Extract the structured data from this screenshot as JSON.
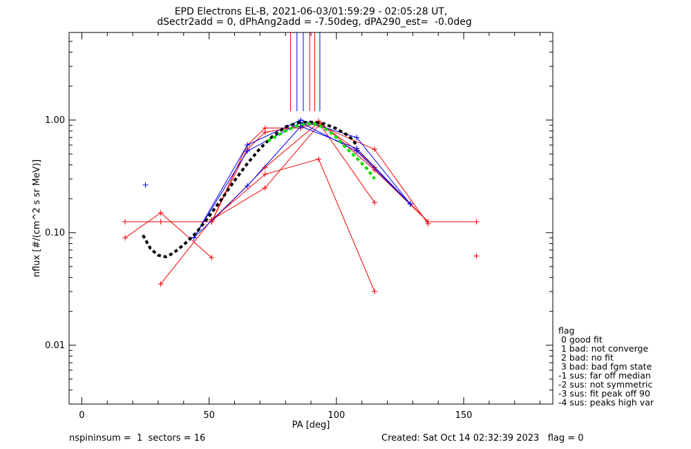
{
  "title": {
    "line1": "EPD Electrons EL-B, 2021-06-03/01:59:29 - 02:05:28 UT,",
    "line2": "dSectr2add = 0, dPhAng2add = -7.50deg, dPA290_est=  -0.0deg"
  },
  "footer": {
    "left": "nspininsum =  1  sectors = 16",
    "right": "Created: Sat Oct 14 02:32:39 2023   flag = 0"
  },
  "legend": {
    "title": "flag",
    "items": [
      " 0 good fit",
      " 1 bad: not converge",
      " 2 bad: no fit",
      " 3 bad: bad fgm state",
      "-1 sus: far off median",
      "-2 sus: not symmetric",
      "-3 sus: fit peak off 90",
      "-4 sus: peaks high var"
    ]
  },
  "colors": {
    "red": "#ee0000",
    "blue": "#0000ee",
    "black": "#000000",
    "green": "#00dd00"
  },
  "chart_data": {
    "type": "scatter",
    "xlabel": "PA [deg]",
    "ylabel": "nflux [#/(cm^2 s sr MeV)]",
    "xlim": [
      -5,
      185
    ],
    "ylim": [
      0.003,
      6.0
    ],
    "yscale": "log",
    "xticks": [
      0,
      50,
      100,
      150
    ],
    "xtick_labels": [
      "0",
      "50",
      "100",
      "150"
    ],
    "yticks": [
      0.01,
      0.1,
      1.0
    ],
    "ytick_labels": [
      "0.01",
      "0.10",
      "1.00"
    ],
    "red_lines": [
      [
        [
          17,
          0.125
        ],
        [
          31,
          0.125
        ],
        [
          51,
          0.125
        ],
        [
          65,
          0.6
        ],
        [
          72,
          0.85
        ],
        [
          86,
          0.85
        ],
        [
          93,
          0.95
        ],
        [
          108,
          0.54
        ],
        [
          115,
          0.38
        ],
        [
          136,
          0.125
        ],
        [
          155,
          0.125
        ]
      ],
      [
        [
          17,
          0.09
        ],
        [
          31,
          0.15
        ],
        [
          51,
          0.06
        ]
      ],
      [
        [
          31,
          0.035
        ],
        [
          51,
          0.13
        ],
        [
          72,
          0.25
        ],
        [
          93,
          0.9
        ],
        [
          115,
          0.55
        ],
        [
          136,
          0.12
        ]
      ],
      [
        [
          51,
          0.125
        ],
        [
          72,
          0.38
        ],
        [
          93,
          0.95
        ],
        [
          115,
          0.185
        ]
      ],
      [
        [
          51,
          0.13
        ],
        [
          72,
          0.33
        ],
        [
          93,
          0.45
        ],
        [
          115,
          0.03
        ]
      ],
      [
        [
          51,
          0.125
        ],
        [
          65,
          0.55
        ],
        [
          72,
          0.78
        ],
        [
          86,
          0.88
        ],
        [
          93,
          0.98
        ],
        [
          115,
          0.36
        ],
        [
          136,
          0.125
        ]
      ]
    ],
    "red_points": [
      [
        155,
        0.062
      ]
    ],
    "blue_lines": [
      [
        [
          44,
          0.09
        ],
        [
          65,
          0.6
        ],
        [
          86,
          1.0
        ],
        [
          108,
          0.7
        ],
        [
          129,
          0.18
        ]
      ],
      [
        [
          44,
          0.09
        ],
        [
          65,
          0.26
        ],
        [
          86,
          0.88
        ],
        [
          108,
          0.56
        ],
        [
          129,
          0.18
        ]
      ],
      [
        [
          44,
          0.09
        ],
        [
          65,
          0.53
        ],
        [
          86,
          0.95
        ],
        [
          108,
          0.53
        ],
        [
          129,
          0.18
        ]
      ]
    ],
    "blue_points": [
      [
        25,
        0.265
      ]
    ],
    "vertical_lines_top": [
      {
        "x": 82,
        "color": "red"
      },
      {
        "x": 84.5,
        "color": "blue"
      },
      {
        "x": 87,
        "color": "blue"
      },
      {
        "x": 89.5,
        "color": "red"
      },
      {
        "x": 91.5,
        "color": "red"
      },
      {
        "x": 93.5,
        "color": "blue"
      }
    ],
    "vertical_lines_bottom": 1.2,
    "fit_black": {
      "x": [
        24,
        27,
        30,
        33,
        36,
        40,
        45,
        50,
        55,
        60,
        65,
        70,
        75,
        80,
        85,
        90,
        95,
        100,
        105,
        108
      ],
      "y": [
        0.095,
        0.072,
        0.063,
        0.061,
        0.066,
        0.078,
        0.1,
        0.14,
        0.2,
        0.29,
        0.41,
        0.56,
        0.72,
        0.87,
        0.95,
        0.96,
        0.93,
        0.84,
        0.72,
        0.6
      ]
    },
    "fit_green": {
      "x": [
        73,
        76,
        80,
        84,
        88,
        91,
        94,
        97,
        100,
        104,
        108,
        112,
        115
      ],
      "y": [
        0.65,
        0.71,
        0.8,
        0.88,
        0.93,
        0.93,
        0.88,
        0.8,
        0.7,
        0.56,
        0.46,
        0.37,
        0.3
      ]
    }
  }
}
